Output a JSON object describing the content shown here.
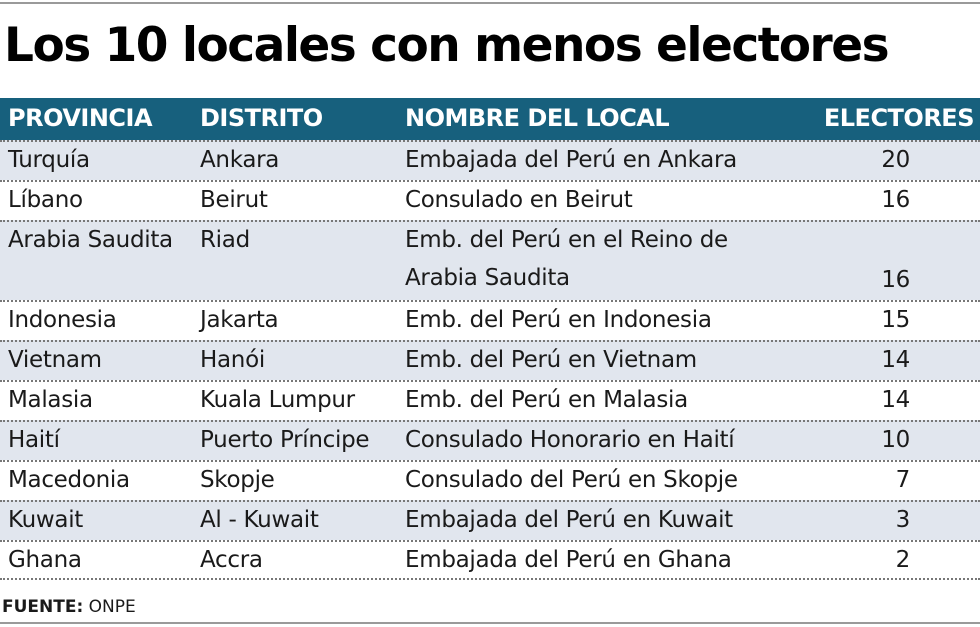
{
  "title": "Los 10 locales con menos electores",
  "columns": [
    "PROVINCIA",
    "DISTRITO",
    "NOMBRE DEL LOCAL",
    "ELECTORES"
  ],
  "rows": [
    {
      "provincia": "Turquía",
      "distrito": "Ankara",
      "local": "Embajada del Perú en Ankara",
      "electores": "20"
    },
    {
      "provincia": "Líbano",
      "distrito": "Beirut",
      "local": "Consulado en Beirut",
      "electores": "16"
    },
    {
      "provincia": "Arabia Saudita",
      "distrito": "Riad",
      "local": "Emb. del Perú en el Reino de",
      "local_2": "Arabia Saudita",
      "electores": "16"
    },
    {
      "provincia": "Indonesia",
      "distrito": "Jakarta",
      "local": "Emb. del Perú en Indonesia",
      "electores": "15"
    },
    {
      "provincia": "Vietnam",
      "distrito": "Hanói",
      "local": "Emb. del Perú en Vietnam",
      "electores": "14"
    },
    {
      "provincia": "Malasia",
      "distrito": "Kuala Lumpur",
      "local": "Emb. del Perú en Malasia",
      "electores": "14"
    },
    {
      "provincia": "Haití",
      "distrito": "Puerto Príncipe",
      "local": "Consulado Honorario en Haití",
      "electores": "10"
    },
    {
      "provincia": "Macedonia",
      "distrito": "Skopje",
      "local": "Consulado del Perú en Skopje",
      "electores": "7"
    },
    {
      "provincia": "Kuwait",
      "distrito": "Al - Kuwait",
      "local": "Embajada del Perú en Kuwait",
      "electores": "3"
    },
    {
      "provincia": "Ghana",
      "distrito": "Accra",
      "local": "Embajada del Perú en Ghana",
      "electores": "2"
    }
  ],
  "source": {
    "label": "FUENTE:",
    "value": "ONPE"
  },
  "colors": {
    "header_bg": "#17607d",
    "alt_row_bg": "#e1e6ee"
  }
}
